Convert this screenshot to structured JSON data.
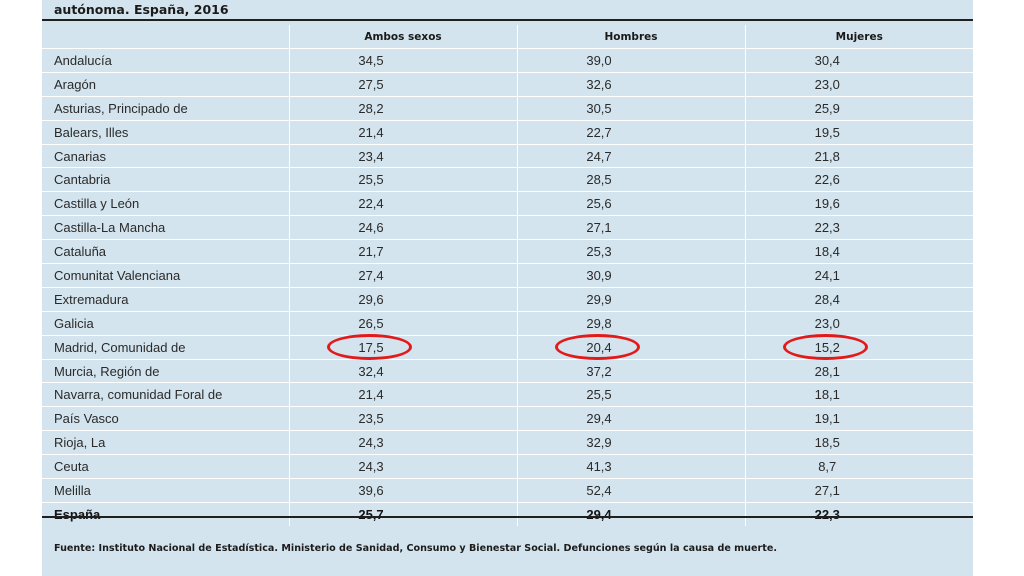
{
  "title": "autónoma. España, 2016",
  "headers": [
    "",
    "Ambos sexos",
    "Hombres",
    "Mujeres"
  ],
  "rows": [
    {
      "region": "Andalucía",
      "ambos": "34,5",
      "hombres": "39,0",
      "mujeres": "30,4"
    },
    {
      "region": "Aragón",
      "ambos": "27,5",
      "hombres": "32,6",
      "mujeres": "23,0"
    },
    {
      "region": "Asturias, Principado de",
      "ambos": "28,2",
      "hombres": "30,5",
      "mujeres": "25,9"
    },
    {
      "region": "Balears, Illes",
      "ambos": "21,4",
      "hombres": "22,7",
      "mujeres": "19,5"
    },
    {
      "region": "Canarias",
      "ambos": "23,4",
      "hombres": "24,7",
      "mujeres": "21,8"
    },
    {
      "region": "Cantabria",
      "ambos": "25,5",
      "hombres": "28,5",
      "mujeres": "22,6"
    },
    {
      "region": "Castilla y León",
      "ambos": "22,4",
      "hombres": "25,6",
      "mujeres": "19,6"
    },
    {
      "region": "Castilla-La Mancha",
      "ambos": "24,6",
      "hombres": "27,1",
      "mujeres": "22,3"
    },
    {
      "region": "Cataluña",
      "ambos": "21,7",
      "hombres": "25,3",
      "mujeres": "18,4"
    },
    {
      "region": "Comunitat Valenciana",
      "ambos": "27,4",
      "hombres": "30,9",
      "mujeres": "24,1"
    },
    {
      "region": "Extremadura",
      "ambos": "29,6",
      "hombres": "29,9",
      "mujeres": "28,4"
    },
    {
      "region": "Galicia",
      "ambos": "26,5",
      "hombres": "29,8",
      "mujeres": "23,0"
    },
    {
      "region": "Madrid, Comunidad de",
      "ambos": "17,5",
      "hombres": "20,4",
      "mujeres": "15,2"
    },
    {
      "region": "Murcia, Región de",
      "ambos": "32,4",
      "hombres": "37,2",
      "mujeres": "28,1"
    },
    {
      "region": "Navarra, comunidad Foral de",
      "ambos": "21,4",
      "hombres": "25,5",
      "mujeres": "18,1"
    },
    {
      "region": "País Vasco",
      "ambos": "23,5",
      "hombres": "29,4",
      "mujeres": "19,1"
    },
    {
      "region": "Rioja, La",
      "ambos": "24,3",
      "hombres": "32,9",
      "mujeres": "18,5"
    },
    {
      "region": "Ceuta",
      "ambos": "24,3",
      "hombres": "41,3",
      "mujeres": "8,7"
    },
    {
      "region": "Melilla",
      "ambos": "39,6",
      "hombres": "52,4",
      "mujeres": "27,1"
    }
  ],
  "total": {
    "region": "España",
    "ambos": "25,7",
    "hombres": "29,4",
    "mujeres": "22,3"
  },
  "highlighted_region": "Madrid, Comunidad de",
  "highlight_color": "#e41a1a",
  "source": "Fuente: Instituto Nacional de Estadística. Ministerio de Sanidad, Consumo y Bienestar Social. Defunciones según la causa de muerte."
}
